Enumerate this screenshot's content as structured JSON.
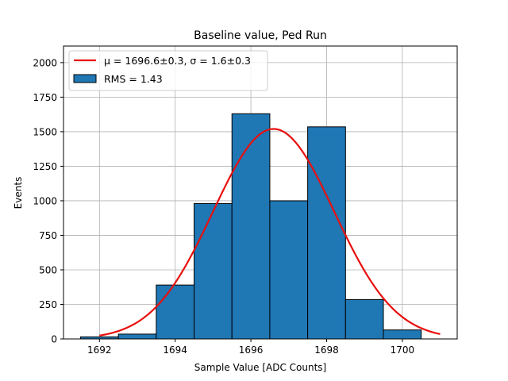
{
  "chart_data": {
    "type": "bar",
    "title": "Baseline value, Ped Run",
    "xlabel": "Sample Value [ADC Counts]",
    "ylabel": "Events",
    "xlim": [
      1691.05,
      1701.45
    ],
    "ylim": [
      0,
      2120
    ],
    "xticks": [
      1692,
      1694,
      1696,
      1698,
      1700
    ],
    "yticks": [
      0,
      250,
      500,
      750,
      1000,
      1250,
      1500,
      1750,
      2000
    ],
    "grid": true,
    "legend_position": "top-left",
    "bins": [
      {
        "left": 1691.5,
        "right": 1692.5,
        "value": 15
      },
      {
        "left": 1692.5,
        "right": 1693.5,
        "value": 35
      },
      {
        "left": 1693.5,
        "right": 1694.5,
        "value": 390
      },
      {
        "left": 1694.5,
        "right": 1695.5,
        "value": 980
      },
      {
        "left": 1695.5,
        "right": 1696.5,
        "value": 1630
      },
      {
        "left": 1696.5,
        "right": 1697.5,
        "value": 1000
      },
      {
        "left": 1697.5,
        "right": 1698.5,
        "value": 1535
      },
      {
        "left": 1698.5,
        "right": 1699.5,
        "value": 285
      },
      {
        "left": 1699.5,
        "right": 1700.5,
        "value": 65
      }
    ],
    "fit": {
      "mu": 1696.6,
      "sigma": 1.6,
      "amplitude": 1520,
      "x_range": [
        1692,
        1701
      ]
    },
    "series": [
      {
        "name": "μ = 1696.6±0.3, σ = 1.6±0.3",
        "kind": "line",
        "color": "#e8100f"
      },
      {
        "name": "RMS = 1.43",
        "kind": "histogram",
        "color": "#1f77b4"
      }
    ]
  }
}
